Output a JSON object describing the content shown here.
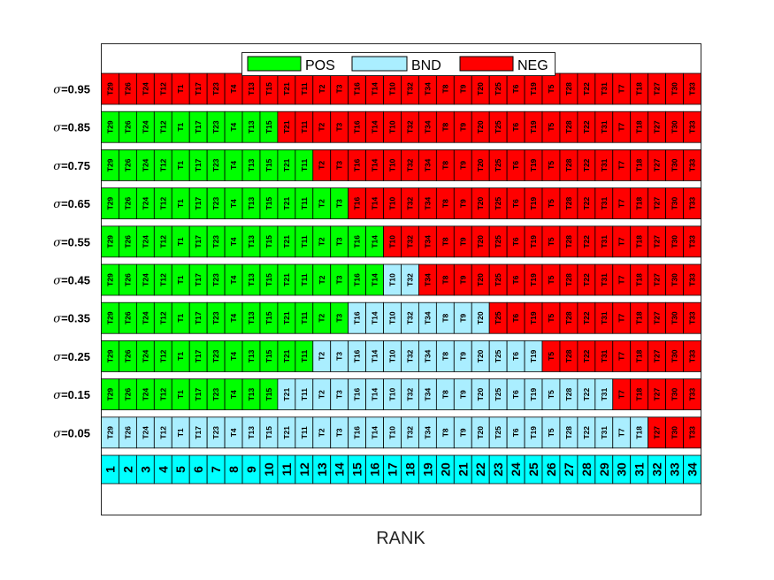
{
  "chart_data": {
    "type": "table",
    "xlabel": "RANK",
    "legend": [
      {
        "name": "POS",
        "color": "#00ff00"
      },
      {
        "name": "BND",
        "color": "#aaeeff"
      },
      {
        "name": "NEG",
        "color": "#ff0000"
      }
    ],
    "legend_placement": "top",
    "rank_color": "#00ffff",
    "order": [
      "T29",
      "T26",
      "T24",
      "T12",
      "T1",
      "T17",
      "T23",
      "T4",
      "T13",
      "T15",
      "T21",
      "T11",
      "T2",
      "T3",
      "T16",
      "T14",
      "T10",
      "T32",
      "T34",
      "T8",
      "T9",
      "T20",
      "T25",
      "T6",
      "T19",
      "T5",
      "T28",
      "T22",
      "T31",
      "T7",
      "T18",
      "T27",
      "T30",
      "T33"
    ],
    "ranks": [
      1,
      2,
      3,
      4,
      5,
      6,
      7,
      8,
      9,
      10,
      11,
      12,
      13,
      14,
      15,
      16,
      17,
      18,
      19,
      20,
      21,
      22,
      23,
      24,
      25,
      26,
      27,
      28,
      29,
      30,
      31,
      32,
      33,
      34
    ],
    "rows": [
      {
        "sigma": "0.95",
        "label_prefix": "σ",
        "label_suffix": "=0.95",
        "pos_count": 0,
        "bnd_count": 0
      },
      {
        "sigma": "0.85",
        "label_prefix": "σ",
        "label_suffix": "=0.85",
        "pos_count": 10,
        "bnd_count": 0
      },
      {
        "sigma": "0.75",
        "label_prefix": "σ",
        "label_suffix": "=0.75",
        "pos_count": 12,
        "bnd_count": 0
      },
      {
        "sigma": "0.65",
        "label_prefix": "σ",
        "label_suffix": "=0.65",
        "pos_count": 14,
        "bnd_count": 0
      },
      {
        "sigma": "0.55",
        "label_prefix": "σ",
        "label_suffix": "=0.55",
        "pos_count": 16,
        "bnd_count": 0
      },
      {
        "sigma": "0.45",
        "label_prefix": "σ",
        "label_suffix": "=0.45",
        "pos_count": 16,
        "bnd_count": 2
      },
      {
        "sigma": "0.35",
        "label_prefix": "σ",
        "label_suffix": "=0.35",
        "pos_count": 14,
        "bnd_count": 8
      },
      {
        "sigma": "0.25",
        "label_prefix": "σ",
        "label_suffix": "=0.25",
        "pos_count": 12,
        "bnd_count": 13
      },
      {
        "sigma": "0.15",
        "label_prefix": "σ",
        "label_suffix": "=0.15",
        "pos_count": 10,
        "bnd_count": 19
      },
      {
        "sigma": "0.05",
        "label_prefix": "σ",
        "label_suffix": "=0.05",
        "pos_count": 0,
        "bnd_count": 31
      }
    ]
  }
}
